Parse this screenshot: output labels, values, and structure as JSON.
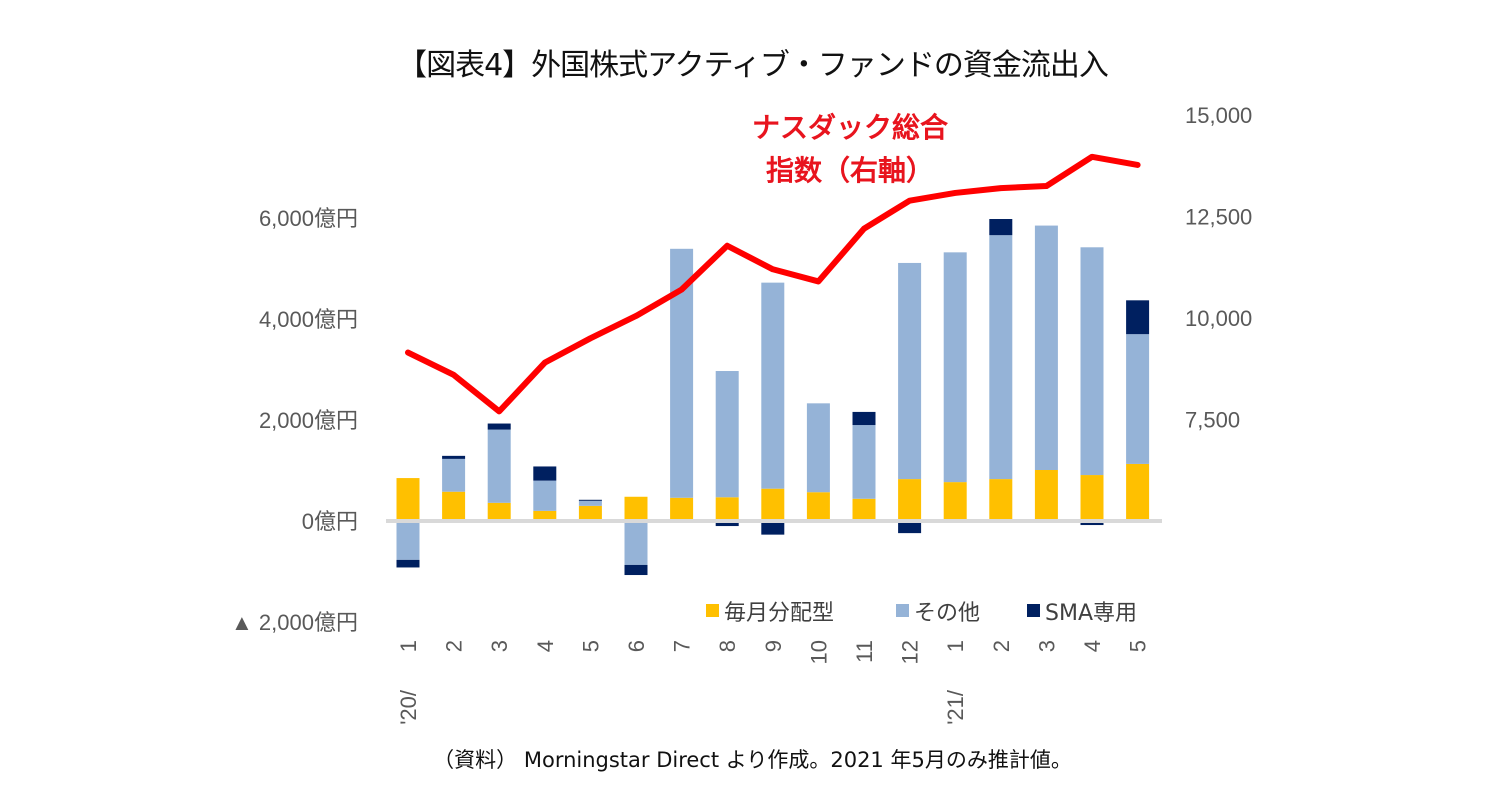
{
  "title": "【図表4】外国株式アクティブ・ファンドの資金流出入",
  "source_note": "（資料） Morningstar Direct より作成。2021 年5月のみ推計値。",
  "chart_data": {
    "type": "bar",
    "stacked": true,
    "title": "【図表4】外国株式アクティブ・ファンドの資金流出入",
    "categories": [
      "'20/ 1",
      "2",
      "3",
      "4",
      "5",
      "6",
      "7",
      "8",
      "9",
      "10",
      "11",
      "12",
      "'21/ 1",
      "2",
      "3",
      "4",
      "5"
    ],
    "x_tick_labels": [
      {
        "top": "1",
        "bottom": "'20/"
      },
      {
        "top": "2"
      },
      {
        "top": "3"
      },
      {
        "top": "4"
      },
      {
        "top": "5"
      },
      {
        "top": "6"
      },
      {
        "top": "7"
      },
      {
        "top": "8"
      },
      {
        "top": "9"
      },
      {
        "top": "10"
      },
      {
        "top": "11"
      },
      {
        "top": "12"
      },
      {
        "top": "1",
        "bottom": "'21/"
      },
      {
        "top": "2"
      },
      {
        "top": "3"
      },
      {
        "top": "4"
      },
      {
        "top": "5"
      }
    ],
    "series": [
      {
        "name": "毎月分配型",
        "color": "#ffc000",
        "axis": "left",
        "values": [
          850,
          580,
          360,
          200,
          300,
          480,
          460,
          470,
          640,
          570,
          440,
          830,
          770,
          830,
          1010,
          910,
          1130
        ]
      },
      {
        "name": "その他",
        "color": "#95b3d7",
        "axis": "left",
        "values": [
          -770,
          650,
          1450,
          600,
          100,
          -870,
          4930,
          2500,
          4080,
          1760,
          1460,
          4280,
          4550,
          4830,
          4840,
          4510,
          2570
        ]
      },
      {
        "name": "SMA専用",
        "color": "#002060",
        "axis": "left",
        "values": [
          -150,
          60,
          120,
          280,
          20,
          -200,
          -30,
          -100,
          -270,
          -20,
          260,
          -240,
          -30,
          320,
          -20,
          -80,
          670
        ]
      }
    ],
    "line_series": {
      "name": "ナスダック総合指数（右軸）",
      "color": "#ff0000",
      "axis": "right",
      "values": [
        9150,
        8600,
        7700,
        8900,
        9500,
        10050,
        10700,
        11780,
        11200,
        10900,
        12200,
        12890,
        13080,
        13200,
        13250,
        13970,
        13770
      ]
    },
    "left_axis": {
      "ylim": [
        -2000,
        6000
      ],
      "ticks": [
        {
          "value": 6000,
          "label": "6,000億円"
        },
        {
          "value": 4000,
          "label": "4,000億円"
        },
        {
          "value": 2000,
          "label": "2,000億円"
        },
        {
          "value": 0,
          "label": "0億円"
        },
        {
          "value": -2000,
          "label": "▲ 2,000億円"
        }
      ]
    },
    "right_axis": {
      "ylim": [
        5000,
        15000
      ],
      "ticks": [
        {
          "value": 15000,
          "label": "15,000"
        },
        {
          "value": 12500,
          "label": "12,500"
        },
        {
          "value": 10000,
          "label": "10,000"
        },
        {
          "value": 7500,
          "label": "7,500"
        }
      ]
    },
    "annotation": {
      "line1": "ナスダック総合",
      "line2": "指数（右軸）"
    },
    "legend": {
      "position": "bottom-right",
      "items": [
        {
          "label": "毎月分配型",
          "color": "#ffc000"
        },
        {
          "label": "その他",
          "color": "#95b3d7"
        },
        {
          "label": "SMA専用",
          "color": "#002060"
        }
      ]
    },
    "zero_line_color": "#d9d9d9",
    "grid": false
  }
}
